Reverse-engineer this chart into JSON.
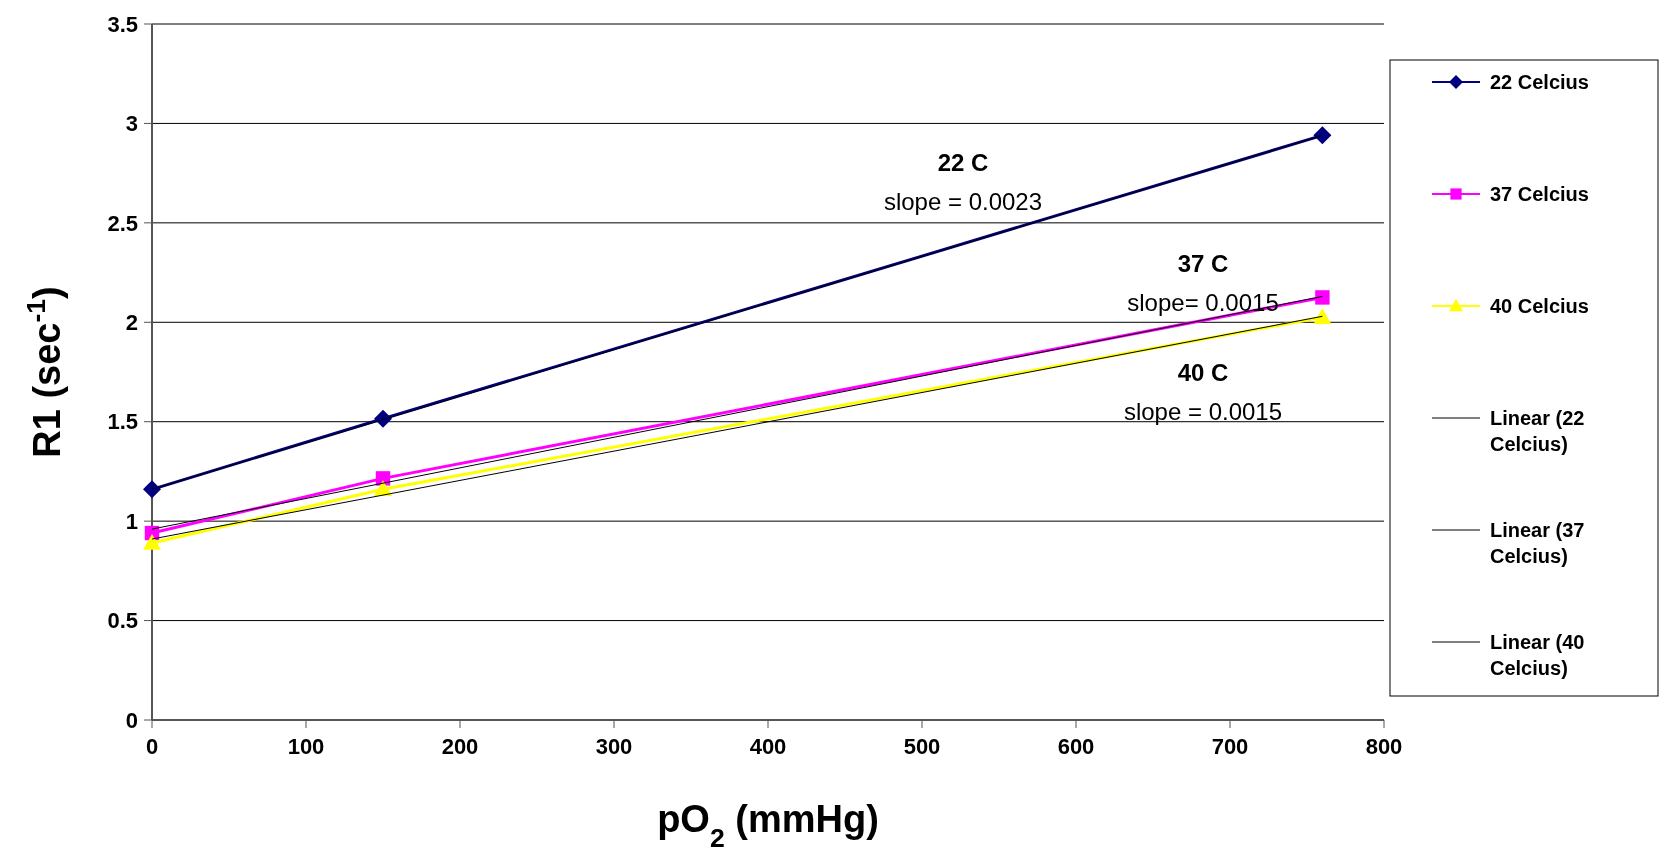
{
  "chart_data": {
    "type": "line",
    "xlabel": "pO$_{2}$ (mmHg)",
    "ylabel": "R1 (sec$^{-1}$)",
    "xlim": [
      0,
      800
    ],
    "xticks": [
      0,
      100,
      200,
      300,
      400,
      500,
      600,
      700,
      800
    ],
    "ylim": [
      0,
      3.5
    ],
    "yticks": [
      0,
      0.5,
      1,
      1.5,
      2,
      2.5,
      3,
      3.5
    ],
    "grid": "y",
    "legend": "right",
    "series": [
      {
        "name": "22 Celcius",
        "color": "#000080",
        "marker": "diamond",
        "x": [
          0,
          150,
          760
        ],
        "values": [
          1.16,
          1.515,
          2.94
        ]
      },
      {
        "name": "37 Celcius",
        "color": "#ff00ff",
        "marker": "square",
        "x": [
          0,
          150,
          760
        ],
        "values": [
          0.94,
          1.215,
          2.125
        ]
      },
      {
        "name": "40 Celcius",
        "color": "#ffff00",
        "marker": "triangle",
        "x": [
          0,
          150,
          760
        ],
        "values": [
          0.89,
          1.16,
          2.025
        ]
      },
      {
        "name": "Linear (22 Celcius)",
        "color": "#000000",
        "marker": "none",
        "x": [
          0,
          760
        ],
        "values": [
          1.16,
          2.94
        ]
      },
      {
        "name": "Linear (37 Celcius)",
        "color": "#000000",
        "marker": "none",
        "x": [
          0,
          760
        ],
        "values": [
          0.96,
          2.13
        ]
      },
      {
        "name": "Linear (40 Celcius)",
        "color": "#000000",
        "marker": "none",
        "x": [
          0,
          760
        ],
        "values": [
          0.91,
          2.03
        ]
      }
    ],
    "annotations": [
      "22 C\nslope = 0.0023",
      "37 C\nslope= 0.0015",
      "40 C\nslope = 0.0015"
    ]
  }
}
